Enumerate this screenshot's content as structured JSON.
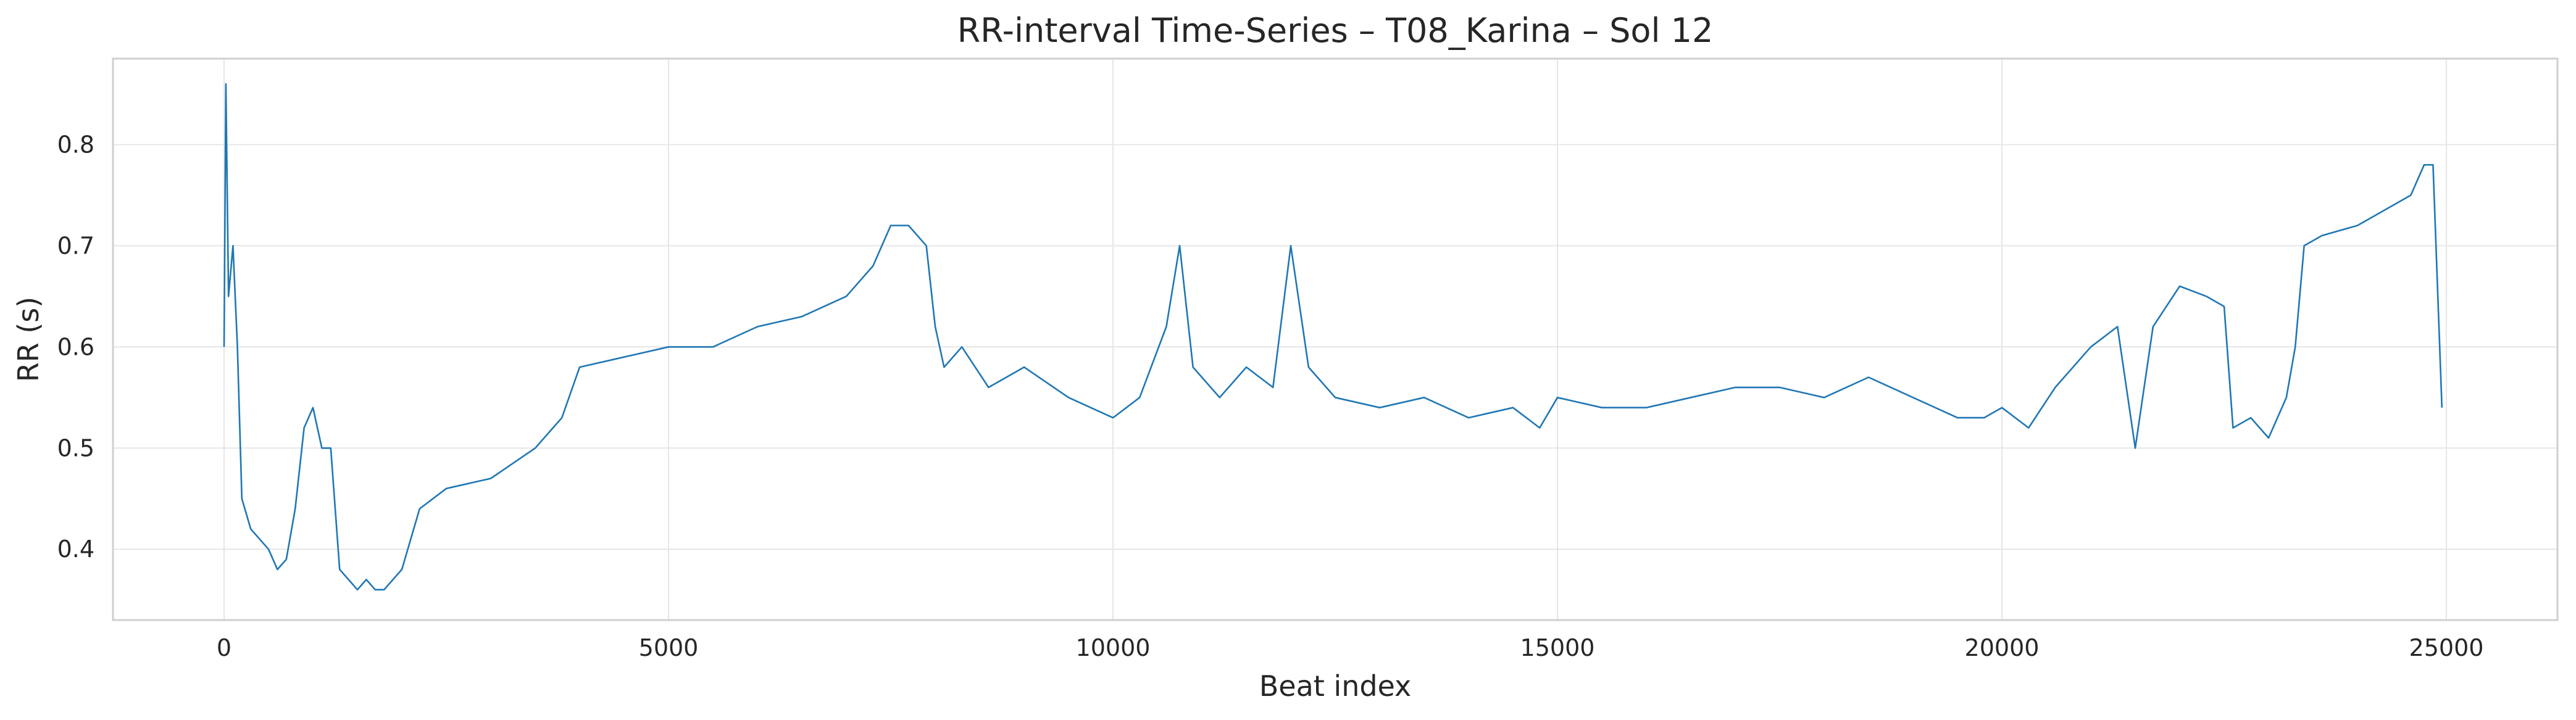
{
  "chart_data": {
    "type": "line",
    "title": "RR-interval Time-Series – T08_Karina – Sol 12",
    "xlabel": "Beat index",
    "ylabel": "RR (s)",
    "xlim": [
      -1250,
      26250
    ],
    "ylim": [
      0.33,
      0.885
    ],
    "xticks": [
      0,
      5000,
      10000,
      15000,
      20000,
      25000
    ],
    "xtick_labels": [
      "0",
      "5000",
      "10000",
      "15000",
      "20000",
      "25000"
    ],
    "yticks": [
      0.4,
      0.5,
      0.6,
      0.7,
      0.8
    ],
    "ytick_labels": [
      "0.4",
      "0.5",
      "0.6",
      "0.7",
      "0.8"
    ],
    "grid": true,
    "line_color": "#1f77b4",
    "series": [
      {
        "x": [
          0,
          20,
          50,
          100,
          150,
          200,
          300,
          400,
          500,
          600,
          700,
          800,
          900,
          1000,
          1100,
          1200,
          1300,
          1400,
          1500,
          1600,
          1700,
          1800,
          1900,
          2000,
          2200,
          2500,
          3000,
          3500,
          3800,
          4000,
          4500,
          5000,
          5500,
          6000,
          6500,
          7000,
          7300,
          7500,
          7700,
          7900,
          8000,
          8100,
          8300,
          8600,
          9000,
          9500,
          10000,
          10300,
          10600,
          10750,
          10900,
          11200,
          11500,
          11800,
          12000,
          12200,
          12500,
          13000,
          13500,
          14000,
          14500,
          14800,
          15000,
          15500,
          16000,
          16500,
          17000,
          17500,
          18000,
          18500,
          19000,
          19500,
          19800,
          20000,
          20300,
          20600,
          21000,
          21300,
          21500,
          21700,
          22000,
          22300,
          22500,
          22600,
          22800,
          23000,
          23200,
          23300,
          23400,
          23600,
          24000,
          24400,
          24600,
          24750,
          24850,
          24950
        ],
        "y": [
          0.6,
          0.86,
          0.65,
          0.7,
          0.6,
          0.45,
          0.42,
          0.41,
          0.4,
          0.38,
          0.39,
          0.44,
          0.52,
          0.54,
          0.5,
          0.5,
          0.38,
          0.37,
          0.36,
          0.37,
          0.36,
          0.36,
          0.37,
          0.38,
          0.44,
          0.46,
          0.47,
          0.5,
          0.53,
          0.58,
          0.59,
          0.6,
          0.6,
          0.62,
          0.63,
          0.65,
          0.68,
          0.72,
          0.72,
          0.7,
          0.62,
          0.58,
          0.6,
          0.56,
          0.58,
          0.55,
          0.53,
          0.55,
          0.62,
          0.7,
          0.58,
          0.55,
          0.58,
          0.56,
          0.7,
          0.58,
          0.55,
          0.54,
          0.55,
          0.53,
          0.54,
          0.52,
          0.55,
          0.54,
          0.54,
          0.55,
          0.56,
          0.56,
          0.55,
          0.57,
          0.55,
          0.53,
          0.53,
          0.54,
          0.52,
          0.56,
          0.6,
          0.62,
          0.5,
          0.62,
          0.66,
          0.65,
          0.64,
          0.52,
          0.53,
          0.51,
          0.55,
          0.6,
          0.7,
          0.71,
          0.72,
          0.74,
          0.75,
          0.78,
          0.78,
          0.54
        ]
      }
    ]
  }
}
